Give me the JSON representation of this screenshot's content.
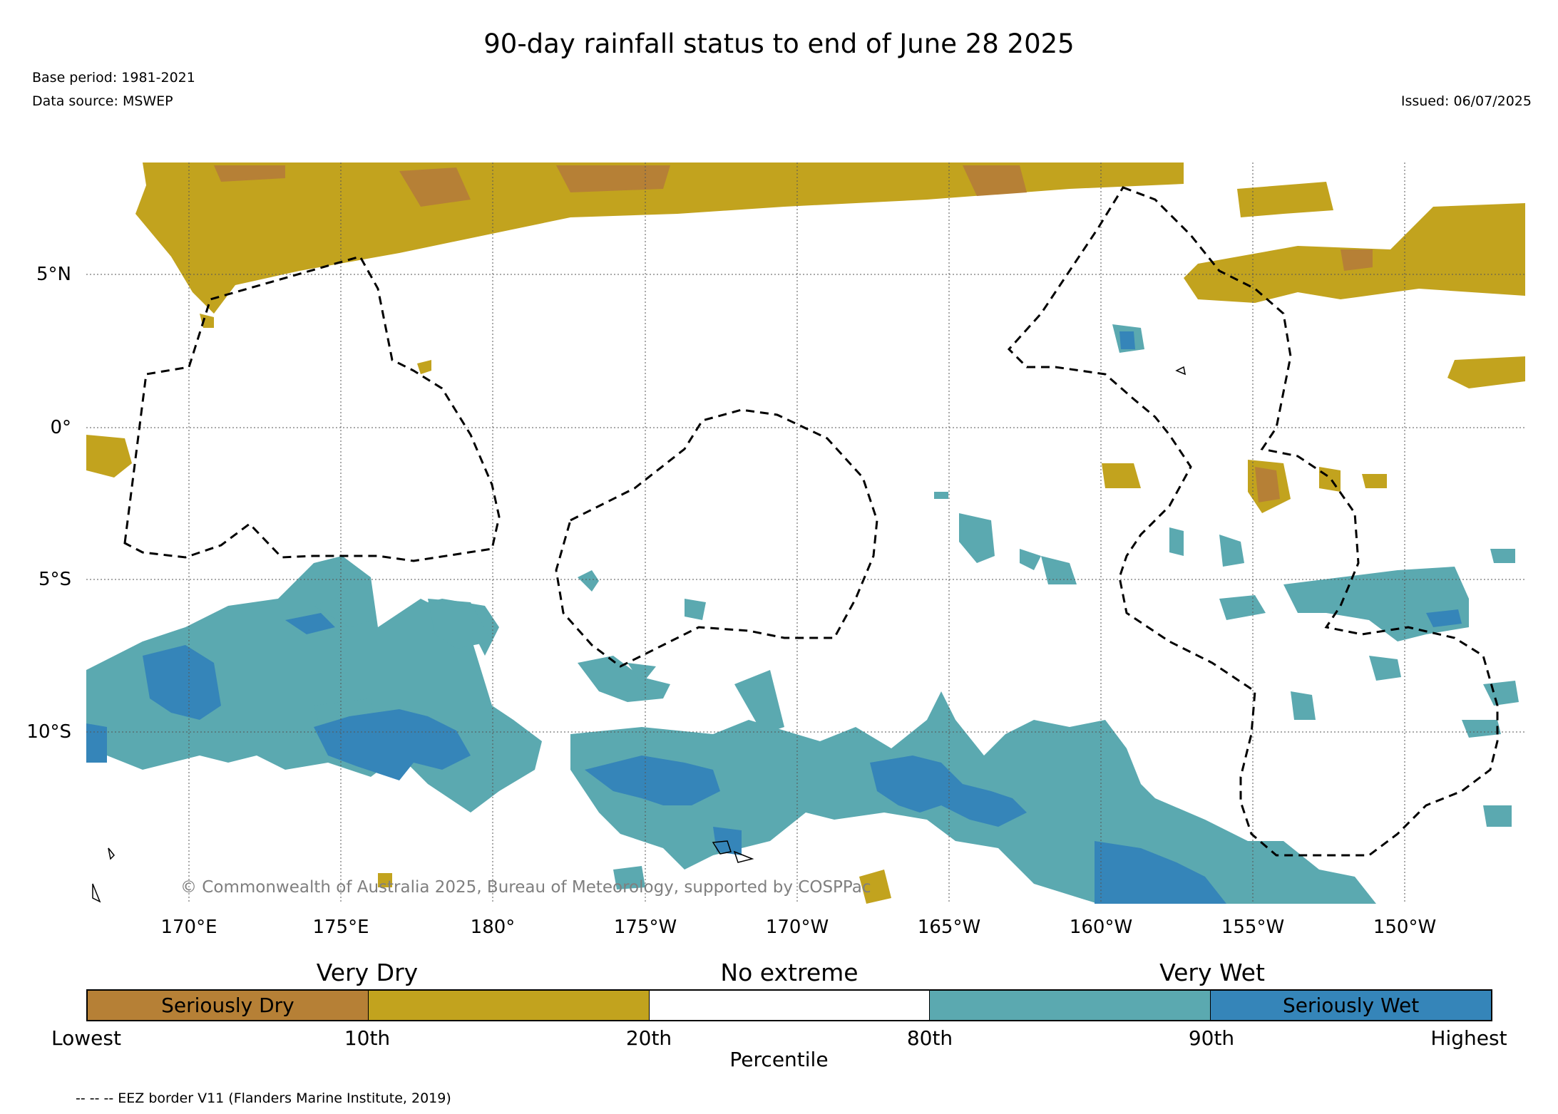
{
  "title": "90-day rainfall status to end of June 28 2025",
  "meta": {
    "base_period": "Base period: 1981-2021",
    "data_source": "Data source: MSWEP",
    "issued": "Issued: 06/07/2025"
  },
  "copyright": "© Commonwealth of Australia 2025, Bureau of Meteorology, supported by COSPPac",
  "axes": {
    "lat_labels": [
      "5°N",
      "0°",
      "5°S",
      "10°S"
    ],
    "lon_labels": [
      "170°E",
      "175°E",
      "180°",
      "175°W",
      "170°W",
      "165°W",
      "160°W",
      "155°W",
      "150°W"
    ]
  },
  "legend": {
    "categories": [
      "Very Dry",
      "No extreme",
      "Very Wet"
    ],
    "segments": [
      {
        "label": "Seriously Dry",
        "color": "#b68036"
      },
      {
        "label": "",
        "color": "#c2a31e"
      },
      {
        "label": "",
        "color": "#ffffff"
      },
      {
        "label": "",
        "color": "#5ba9b0"
      },
      {
        "label": "Seriously Wet",
        "color": "#3585b9"
      }
    ],
    "ticks": [
      "Lowest",
      "10th",
      "20th",
      "80th",
      "90th",
      "Highest"
    ],
    "axis_title": "Percentile"
  },
  "eez_note": "-- -- -- EEZ border V11 (Flanders Marine Institute, 2019)",
  "colors": {
    "seriously_dry": "#b68036",
    "very_dry": "#c2a31e",
    "very_wet": "#5ba9b0",
    "seriously_wet": "#3585b9"
  }
}
